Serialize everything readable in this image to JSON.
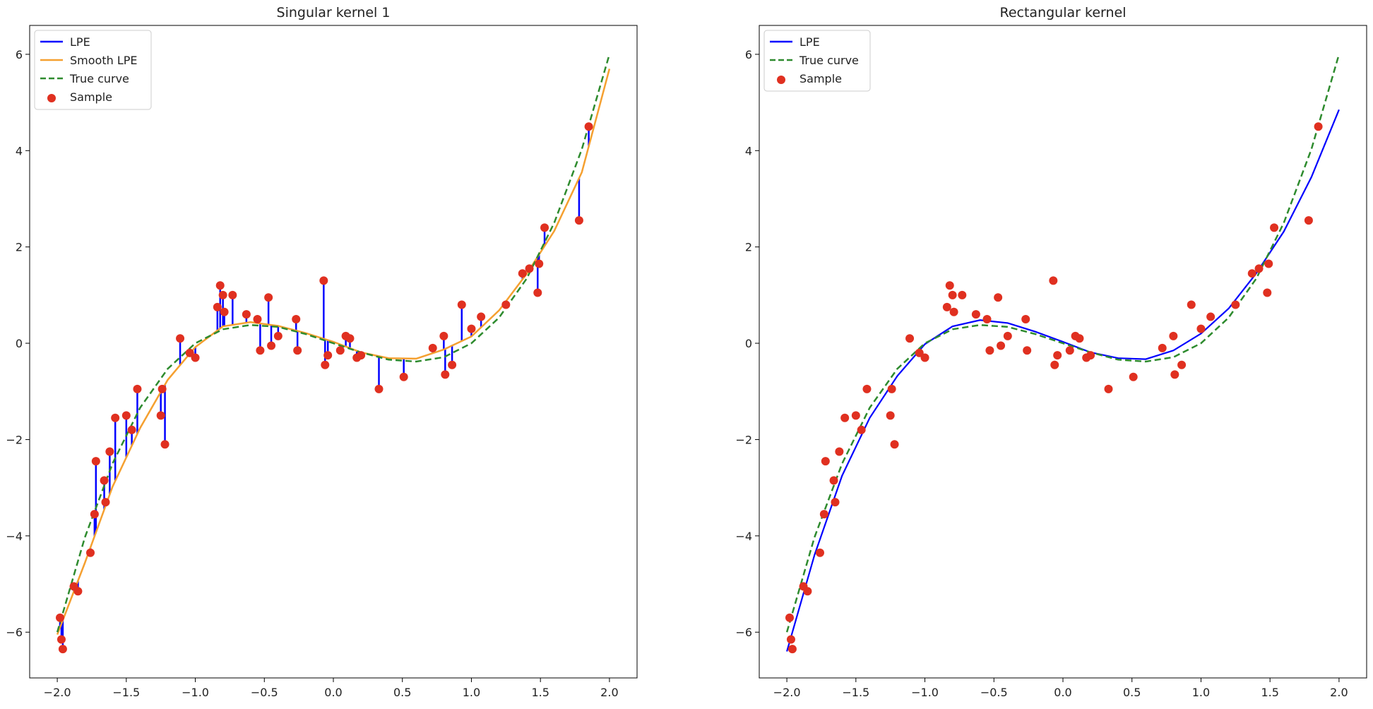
{
  "chart_data": [
    {
      "type": "line",
      "title": "Singular kernel 1",
      "xlabel": "",
      "ylabel": "",
      "xlim": [
        -2.2,
        2.2
      ],
      "ylim": [
        -6.95,
        6.6
      ],
      "x_ticks": [
        "−2.0",
        "−1.5",
        "−1.0",
        "−0.5",
        "0.0",
        "0.5",
        "1.0",
        "1.5",
        "2.0"
      ],
      "y_ticks": [
        "−6",
        "−4",
        "−2",
        "0",
        "2",
        "4",
        "6"
      ],
      "legend_position": "top-left",
      "legend": [
        "LPE",
        "Smooth LPE",
        "True curve",
        "Sample"
      ],
      "colors": {
        "lpe": "#0000ff",
        "smooth": "#f5a030",
        "true": "#2e8b2e",
        "sample": "#e03020"
      },
      "series": [
        {
          "name": "LPE",
          "kind": "sample-lines",
          "x": [
            -1.98,
            -1.97,
            -1.96,
            -1.88,
            -1.85,
            -1.76,
            -1.73,
            -1.72,
            -1.66,
            -1.65,
            -1.62,
            -1.58,
            -1.5,
            -1.46,
            -1.42,
            -1.25,
            -1.24,
            -1.22,
            -1.11,
            -1.04,
            -1.0,
            -0.84,
            -0.82,
            -0.8,
            -0.79,
            -0.73,
            -0.63,
            -0.55,
            -0.53,
            -0.47,
            -0.45,
            -0.4,
            -0.27,
            -0.26,
            -0.07,
            -0.06,
            -0.04,
            0.05,
            0.09,
            0.12,
            0.17,
            0.2,
            0.33,
            0.51,
            0.72,
            0.8,
            0.81,
            0.86,
            0.93,
            1.0,
            1.07,
            1.25,
            1.37,
            1.42,
            1.48,
            1.49,
            1.53,
            1.78,
            1.85
          ],
          "y": [
            -5.7,
            -6.15,
            -6.35,
            -5.05,
            -5.15,
            -4.35,
            -3.55,
            -2.45,
            -2.85,
            -3.3,
            -2.25,
            -1.55,
            -1.5,
            -1.8,
            -0.95,
            -1.5,
            -0.95,
            -2.1,
            0.1,
            -0.2,
            -0.3,
            0.75,
            1.2,
            1.0,
            0.65,
            1.0,
            0.6,
            0.5,
            -0.15,
            0.95,
            -0.05,
            0.15,
            0.5,
            -0.15,
            1.3,
            -0.45,
            -0.25,
            -0.15,
            0.15,
            0.1,
            -0.3,
            -0.25,
            -0.95,
            -0.7,
            -0.1,
            0.15,
            -0.65,
            -0.45,
            0.8,
            0.3,
            0.55,
            0.8,
            1.45,
            1.55,
            1.05,
            1.65,
            2.4,
            2.55,
            4.5
          ]
        },
        {
          "name": "Smooth LPE",
          "x": [
            -2.0,
            -1.8,
            -1.6,
            -1.4,
            -1.2,
            -1.0,
            -0.8,
            -0.6,
            -0.4,
            -0.2,
            0.0,
            0.2,
            0.4,
            0.6,
            0.8,
            1.0,
            1.2,
            1.4,
            1.6,
            1.8,
            2.0
          ],
          "y": [
            -6.05,
            -4.56,
            -2.98,
            -1.76,
            -0.76,
            -0.08,
            0.35,
            0.44,
            0.36,
            0.21,
            0.03,
            -0.19,
            -0.31,
            -0.32,
            -0.13,
            0.14,
            0.68,
            1.44,
            2.33,
            3.55,
            5.7
          ]
        },
        {
          "name": "True curve",
          "x": [
            -2.0,
            -1.8,
            -1.6,
            -1.4,
            -1.2,
            -1.0,
            -0.8,
            -0.6,
            -0.4,
            -0.2,
            0.0,
            0.2,
            0.4,
            0.6,
            0.8,
            1.0,
            1.2,
            1.4,
            1.6,
            1.8,
            2.0
          ],
          "y": [
            -6.0,
            -4.03,
            -2.5,
            -1.34,
            -0.53,
            0.0,
            0.29,
            0.38,
            0.34,
            0.19,
            0.0,
            -0.19,
            -0.34,
            -0.38,
            -0.29,
            0.0,
            0.53,
            1.34,
            2.5,
            4.03,
            6.0
          ]
        },
        {
          "name": "Sample",
          "kind": "scatter",
          "x": [
            -1.98,
            -1.97,
            -1.96,
            -1.88,
            -1.85,
            -1.76,
            -1.73,
            -1.72,
            -1.66,
            -1.65,
            -1.62,
            -1.58,
            -1.5,
            -1.46,
            -1.42,
            -1.25,
            -1.24,
            -1.22,
            -1.11,
            -1.04,
            -1.0,
            -0.84,
            -0.82,
            -0.8,
            -0.79,
            -0.73,
            -0.63,
            -0.55,
            -0.53,
            -0.47,
            -0.45,
            -0.4,
            -0.27,
            -0.26,
            -0.07,
            -0.06,
            -0.04,
            0.05,
            0.09,
            0.12,
            0.17,
            0.2,
            0.33,
            0.51,
            0.72,
            0.8,
            0.81,
            0.86,
            0.93,
            1.0,
            1.07,
            1.25,
            1.37,
            1.42,
            1.48,
            1.49,
            1.53,
            1.78,
            1.85
          ],
          "y": [
            -5.7,
            -6.15,
            -6.35,
            -5.05,
            -5.15,
            -4.35,
            -3.55,
            -2.45,
            -2.85,
            -3.3,
            -2.25,
            -1.55,
            -1.5,
            -1.8,
            -0.95,
            -1.5,
            -0.95,
            -2.1,
            0.1,
            -0.2,
            -0.3,
            0.75,
            1.2,
            1.0,
            0.65,
            1.0,
            0.6,
            0.5,
            -0.15,
            0.95,
            -0.05,
            0.15,
            0.5,
            -0.15,
            1.3,
            -0.45,
            -0.25,
            -0.15,
            0.15,
            0.1,
            -0.3,
            -0.25,
            -0.95,
            -0.7,
            -0.1,
            0.15,
            -0.65,
            -0.45,
            0.8,
            0.3,
            0.55,
            0.8,
            1.45,
            1.55,
            1.05,
            1.65,
            2.4,
            2.55,
            4.5
          ]
        }
      ]
    },
    {
      "type": "line",
      "title": "Rectangular kernel",
      "xlabel": "",
      "ylabel": "",
      "xlim": [
        -2.2,
        2.2
      ],
      "ylim": [
        -6.95,
        6.6
      ],
      "x_ticks": [
        "−2.0",
        "−1.5",
        "−1.0",
        "−0.5",
        "0.0",
        "0.5",
        "1.0",
        "1.5",
        "2.0"
      ],
      "y_ticks": [
        "−6",
        "−4",
        "−2",
        "0",
        "2",
        "4",
        "6"
      ],
      "legend_position": "top-left",
      "legend": [
        "LPE",
        "True curve",
        "Sample"
      ],
      "colors": {
        "lpe": "#0000ff",
        "true": "#2e8b2e",
        "sample": "#e03020"
      },
      "series": [
        {
          "name": "LPE",
          "x": [
            -2.0,
            -1.8,
            -1.6,
            -1.4,
            -1.2,
            -1.0,
            -0.8,
            -0.6,
            -0.4,
            -0.2,
            0.0,
            0.2,
            0.4,
            0.6,
            0.8,
            1.0,
            1.2,
            1.4,
            1.6,
            1.8,
            2.0
          ],
          "y": [
            -6.4,
            -4.4,
            -2.75,
            -1.55,
            -0.68,
            -0.02,
            0.35,
            0.48,
            0.42,
            0.24,
            0.03,
            -0.19,
            -0.31,
            -0.33,
            -0.15,
            0.2,
            0.72,
            1.45,
            2.32,
            3.45,
            4.85
          ]
        },
        {
          "name": "True curve",
          "x": [
            -2.0,
            -1.8,
            -1.6,
            -1.4,
            -1.2,
            -1.0,
            -0.8,
            -0.6,
            -0.4,
            -0.2,
            0.0,
            0.2,
            0.4,
            0.6,
            0.8,
            1.0,
            1.2,
            1.4,
            1.6,
            1.8,
            2.0
          ],
          "y": [
            -6.0,
            -4.03,
            -2.5,
            -1.34,
            -0.53,
            0.0,
            0.29,
            0.38,
            0.34,
            0.19,
            0.0,
            -0.19,
            -0.34,
            -0.38,
            -0.29,
            0.0,
            0.53,
            1.34,
            2.5,
            4.03,
            6.0
          ]
        },
        {
          "name": "Sample",
          "kind": "scatter",
          "x": [
            -1.98,
            -1.97,
            -1.96,
            -1.88,
            -1.85,
            -1.76,
            -1.73,
            -1.72,
            -1.66,
            -1.65,
            -1.62,
            -1.58,
            -1.5,
            -1.46,
            -1.42,
            -1.25,
            -1.24,
            -1.22,
            -1.11,
            -1.04,
            -1.0,
            -0.84,
            -0.82,
            -0.8,
            -0.79,
            -0.73,
            -0.63,
            -0.55,
            -0.53,
            -0.47,
            -0.45,
            -0.4,
            -0.27,
            -0.26,
            -0.07,
            -0.06,
            -0.04,
            0.05,
            0.09,
            0.12,
            0.17,
            0.2,
            0.33,
            0.51,
            0.72,
            0.8,
            0.81,
            0.86,
            0.93,
            1.0,
            1.07,
            1.25,
            1.37,
            1.42,
            1.48,
            1.49,
            1.53,
            1.78,
            1.85
          ],
          "y": [
            -5.7,
            -6.15,
            -6.35,
            -5.05,
            -5.15,
            -4.35,
            -3.55,
            -2.45,
            -2.85,
            -3.3,
            -2.25,
            -1.55,
            -1.5,
            -1.8,
            -0.95,
            -1.5,
            -0.95,
            -2.1,
            0.1,
            -0.2,
            -0.3,
            0.75,
            1.2,
            1.0,
            0.65,
            1.0,
            0.6,
            0.5,
            -0.15,
            0.95,
            -0.05,
            0.15,
            0.5,
            -0.15,
            1.3,
            -0.45,
            -0.25,
            -0.15,
            0.15,
            0.1,
            -0.3,
            -0.25,
            -0.95,
            -0.7,
            -0.1,
            0.15,
            -0.65,
            -0.45,
            0.8,
            0.3,
            0.55,
            0.8,
            1.45,
            1.55,
            1.05,
            1.65,
            2.4,
            2.55,
            4.5
          ]
        }
      ]
    }
  ]
}
